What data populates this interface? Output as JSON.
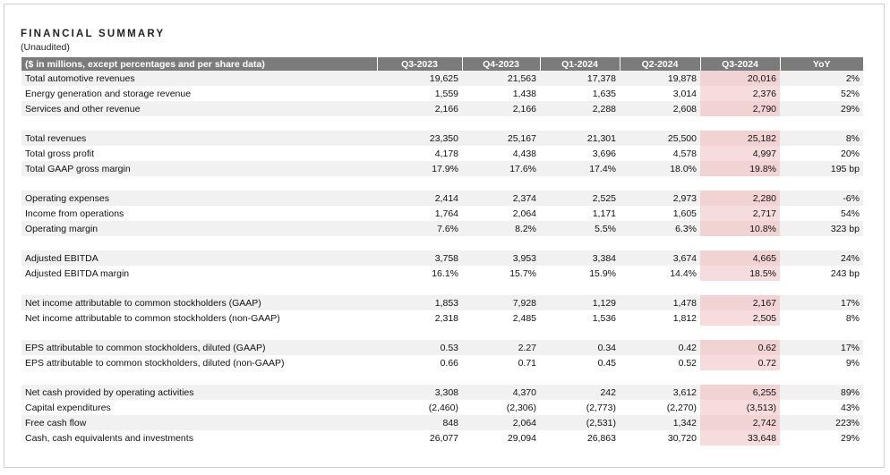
{
  "title": "FINANCIAL SUMMARY",
  "subtitle": "(Unaudited)",
  "header": [
    "($ in millions, except percentages and per share data)",
    "Q3-2023",
    "Q4-2023",
    "Q1-2024",
    "Q2-2024",
    "Q3-2024",
    "YoY"
  ],
  "highlight_color": "#f6dcdc",
  "header_color": "#7b7b7b",
  "sections": [
    [
      [
        "Total automotive revenues",
        "19,625",
        "21,563",
        "17,378",
        "19,878",
        "20,016",
        "2%"
      ],
      [
        "Energy generation and storage revenue",
        "1,559",
        "1,438",
        "1,635",
        "3,014",
        "2,376",
        "52%"
      ],
      [
        "Services and other revenue",
        "2,166",
        "2,166",
        "2,288",
        "2,608",
        "2,790",
        "29%"
      ]
    ],
    [
      [
        "Total revenues",
        "23,350",
        "25,167",
        "21,301",
        "25,500",
        "25,182",
        "8%"
      ],
      [
        "Total gross profit",
        "4,178",
        "4,438",
        "3,696",
        "4,578",
        "4,997",
        "20%"
      ],
      [
        "Total GAAP gross margin",
        "17.9%",
        "17.6%",
        "17.4%",
        "18.0%",
        "19.8%",
        "195 bp"
      ]
    ],
    [
      [
        "Operating expenses",
        "2,414",
        "2,374",
        "2,525",
        "2,973",
        "2,280",
        "-6%"
      ],
      [
        "Income from operations",
        "1,764",
        "2,064",
        "1,171",
        "1,605",
        "2,717",
        "54%"
      ],
      [
        "Operating margin",
        "7.6%",
        "8.2%",
        "5.5%",
        "6.3%",
        "10.8%",
        "323 bp"
      ]
    ],
    [
      [
        "Adjusted EBITDA",
        "3,758",
        "3,953",
        "3,384",
        "3,674",
        "4,665",
        "24%"
      ],
      [
        "Adjusted EBITDA margin",
        "16.1%",
        "15.7%",
        "15.9%",
        "14.4%",
        "18.5%",
        "243 bp"
      ]
    ],
    [
      [
        "Net income attributable to common stockholders (GAAP)",
        "1,853",
        "7,928",
        "1,129",
        "1,478",
        "2,167",
        "17%"
      ],
      [
        "Net income attributable to common stockholders (non-GAAP)",
        "2,318",
        "2,485",
        "1,536",
        "1,812",
        "2,505",
        "8%"
      ]
    ],
    [
      [
        "EPS attributable to common stockholders, diluted (GAAP)",
        "0.53",
        "2.27",
        "0.34",
        "0.42",
        "0.62",
        "17%"
      ],
      [
        "EPS attributable to common stockholders, diluted (non-GAAP)",
        "0.66",
        "0.71",
        "0.45",
        "0.52",
        "0.72",
        "9%"
      ]
    ],
    [
      [
        "Net cash provided by operating activities",
        "3,308",
        "4,370",
        "242",
        "3,612",
        "6,255",
        "89%"
      ],
      [
        "Capital expenditures",
        "(2,460)",
        "(2,306)",
        "(2,773)",
        "(2,270)",
        "(3,513)",
        "43%"
      ],
      [
        "Free cash flow",
        "848",
        "2,064",
        "(2,531)",
        "1,342",
        "2,742",
        "223%"
      ],
      [
        "Cash, cash equivalents and investments",
        "26,077",
        "29,094",
        "26,863",
        "30,720",
        "33,648",
        "29%"
      ]
    ]
  ]
}
